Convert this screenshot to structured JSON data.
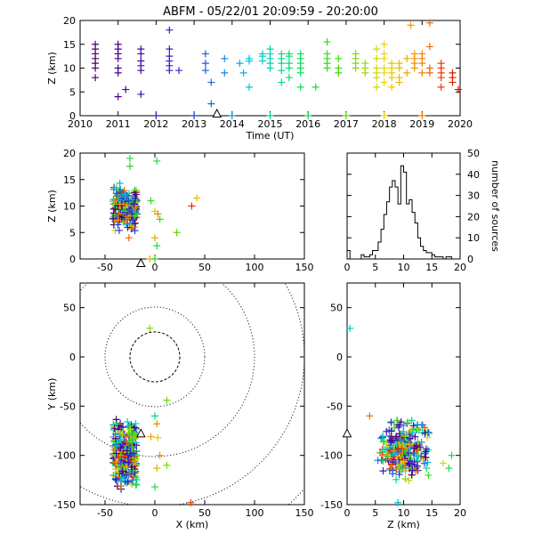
{
  "title": "ABFM - 05/22/01 20:09:59 - 20:20:00",
  "chart_data": [
    {
      "id": "time_height",
      "type": "scatter",
      "xlabel": "Time (UT)",
      "ylabel": "Z (km)",
      "xlim": [
        2010,
        2020
      ],
      "ylim": [
        0,
        20
      ],
      "xticks": [
        2010,
        2011,
        2012,
        2013,
        2014,
        2015,
        2016,
        2017,
        2018,
        2019,
        2020
      ],
      "yticks": [
        0,
        5,
        10,
        15,
        20
      ],
      "marker": "+",
      "color_by": "time",
      "reference_marker": {
        "x": 2013.6,
        "y": 0
      },
      "columns": [
        {
          "x": 2010.4,
          "z": [
            8,
            10,
            11,
            12,
            13,
            14,
            15
          ],
          "ground": true
        },
        {
          "x": 2011.0,
          "z": [
            4,
            9,
            10,
            12,
            13,
            14,
            15
          ],
          "ground": true
        },
        {
          "x": 2011.2,
          "z": [
            5.5
          ]
        },
        {
          "x": 2011.6,
          "z": [
            4.5,
            9.5,
            10.5,
            11.5,
            13,
            14
          ],
          "ground": false
        },
        {
          "x": 2012.0,
          "z": [
            0
          ]
        },
        {
          "x": 2012.35,
          "z": [
            9.5,
            10.5,
            11.5,
            12.5,
            14,
            18
          ]
        },
        {
          "x": 2012.6,
          "z": [
            9.5
          ]
        },
        {
          "x": 2013.0,
          "z": [
            0
          ]
        },
        {
          "x": 2013.3,
          "z": [
            9.5,
            11,
            13
          ]
        },
        {
          "x": 2013.45,
          "z": [
            2.5,
            7
          ]
        },
        {
          "x": 2013.8,
          "z": [
            9,
            12
          ]
        },
        {
          "x": 2014.0,
          "z": [
            0
          ]
        },
        {
          "x": 2014.2,
          "z": [
            11
          ]
        },
        {
          "x": 2014.3,
          "z": [
            9
          ]
        },
        {
          "x": 2014.45,
          "z": [
            6,
            11.5,
            12
          ]
        },
        {
          "x": 2014.8,
          "z": [
            11.5,
            12.5,
            13
          ]
        },
        {
          "x": 2015.0,
          "z": [
            0,
            10,
            11,
            12,
            13,
            14
          ]
        },
        {
          "x": 2015.3,
          "z": [
            7,
            9.5,
            11,
            12,
            13
          ]
        },
        {
          "x": 2015.5,
          "z": [
            8,
            10,
            11,
            12.5,
            13
          ]
        },
        {
          "x": 2015.8,
          "z": [
            6,
            9,
            10,
            11,
            12,
            13
          ]
        },
        {
          "x": 2016.0,
          "z": [
            0
          ]
        },
        {
          "x": 2016.2,
          "z": [
            6
          ]
        },
        {
          "x": 2016.5,
          "z": [
            10,
            11,
            12,
            13,
            15.5
          ]
        },
        {
          "x": 2016.8,
          "z": [
            9,
            10,
            12
          ]
        },
        {
          "x": 2017.0,
          "z": [
            0
          ]
        },
        {
          "x": 2017.25,
          "z": [
            10,
            11,
            12,
            13
          ]
        },
        {
          "x": 2017.5,
          "z": [
            9,
            10,
            11
          ]
        },
        {
          "x": 2017.8,
          "z": [
            6,
            8,
            9,
            10,
            12,
            14
          ]
        },
        {
          "x": 2018.0,
          "z": [
            0,
            7,
            9,
            10,
            12,
            13,
            15
          ]
        },
        {
          "x": 2018.2,
          "z": [
            6,
            8,
            9,
            10,
            11
          ]
        },
        {
          "x": 2018.4,
          "z": [
            7,
            8,
            10,
            11
          ]
        },
        {
          "x": 2018.6,
          "z": [
            9,
            12
          ]
        },
        {
          "x": 2018.7,
          "z": [
            19
          ]
        },
        {
          "x": 2018.8,
          "z": [
            10,
            11,
            12,
            13
          ]
        },
        {
          "x": 2019.0,
          "z": [
            0,
            9,
            11,
            12,
            13
          ]
        },
        {
          "x": 2019.2,
          "z": [
            9,
            10,
            14.5,
            19.5
          ]
        },
        {
          "x": 2019.5,
          "z": [
            6,
            8,
            9,
            10,
            11
          ]
        },
        {
          "x": 2019.8,
          "z": [
            7,
            8,
            9
          ]
        },
        {
          "x": 2019.95,
          "z": [
            5.5
          ]
        }
      ]
    },
    {
      "id": "x_z",
      "type": "scatter",
      "xlabel": "",
      "ylabel": "Z (km)",
      "xlim": [
        -75,
        150
      ],
      "ylim": [
        0,
        20
      ],
      "xticks": [
        -50,
        0,
        50,
        100,
        150
      ],
      "yticks": [
        0,
        5,
        10,
        15,
        20
      ],
      "marker": "+",
      "reference_marker": {
        "x": -14,
        "y": 0
      },
      "cluster": {
        "xrange": [
          -42,
          -18
        ],
        "zrange": [
          4,
          15
        ]
      },
      "outliers": [
        {
          "x": -25,
          "z": 19
        },
        {
          "x": 2,
          "z": 18.5
        },
        {
          "x": -25,
          "z": 17.5
        },
        {
          "x": -4,
          "z": 11
        },
        {
          "x": 0,
          "z": 9
        },
        {
          "x": 3,
          "z": 8.5
        },
        {
          "x": 5,
          "z": 7.5
        },
        {
          "x": 0,
          "z": 4
        },
        {
          "x": 2,
          "z": 2.5
        },
        {
          "x": 42,
          "z": 11.5
        },
        {
          "x": 37,
          "z": 10
        },
        {
          "x": -26,
          "z": 4
        },
        {
          "x": -5,
          "z": 0
        },
        {
          "x": 0,
          "z": 0
        },
        {
          "x": 22,
          "z": 5
        }
      ]
    },
    {
      "id": "histogram",
      "type": "bar",
      "ylabel": "number of sources",
      "xlabel": "",
      "xlim": [
        0,
        20
      ],
      "ylim": [
        0,
        50
      ],
      "xticks": [
        0,
        5,
        10,
        15,
        20
      ],
      "yticks": [
        0,
        10,
        20,
        30,
        40,
        50
      ],
      "bin_width": 0.5,
      "bins_start": [
        0,
        0.5,
        1,
        1.5,
        2,
        2.5,
        3,
        3.5,
        4,
        4.5,
        5,
        5.5,
        6,
        6.5,
        7,
        7.5,
        8,
        8.5,
        9,
        9.5,
        10,
        10.5,
        11,
        11.5,
        12,
        12.5,
        13,
        13.5,
        14,
        14.5,
        15,
        15.5,
        16,
        16.5,
        17,
        17.5,
        18,
        18.5,
        19,
        19.5
      ],
      "values": [
        4,
        0,
        0,
        0,
        0,
        2,
        1,
        1,
        2,
        4,
        4,
        8,
        14,
        21,
        27,
        34,
        37,
        34,
        26,
        44,
        41,
        26,
        28,
        22,
        17,
        10,
        6,
        4,
        3,
        3,
        2,
        1,
        1,
        1,
        0,
        1,
        1,
        0,
        0,
        0
      ]
    },
    {
      "id": "x_y_plan",
      "type": "scatter",
      "xlabel": "X (km)",
      "ylabel": "Y (km)",
      "xlim": [
        -75,
        150
      ],
      "ylim": [
        -150,
        75
      ],
      "xticks": [
        -50,
        0,
        50,
        100,
        150
      ],
      "yticks": [
        -150,
        -100,
        -50,
        0,
        50
      ],
      "marker": "+",
      "range_rings_km": [
        25,
        50,
        100,
        150,
        200
      ],
      "ring_center": [
        0,
        0
      ],
      "reference_marker": {
        "x": -14,
        "y": -78
      },
      "cluster": {
        "xrange": [
          -42,
          -18
        ],
        "yrange": [
          -135,
          -62
        ]
      },
      "outliers": [
        {
          "x": -5,
          "y": 29
        },
        {
          "x": 12,
          "y": -44
        },
        {
          "x": 0,
          "y": -60
        },
        {
          "x": 2,
          "y": -68
        },
        {
          "x": -4,
          "y": -81
        },
        {
          "x": 3,
          "y": -82
        },
        {
          "x": 5,
          "y": -100
        },
        {
          "x": 2,
          "y": -113
        },
        {
          "x": 0,
          "y": -132
        },
        {
          "x": 12,
          "y": -110
        },
        {
          "x": 36,
          "y": -148
        }
      ]
    },
    {
      "id": "z_y",
      "type": "scatter",
      "xlabel": "Z (km)",
      "ylabel": "",
      "xlim": [
        0,
        20
      ],
      "ylim": [
        -150,
        75
      ],
      "xticks": [
        0,
        5,
        10,
        15,
        20
      ],
      "yticks": [
        -150,
        -100,
        -50,
        0,
        50
      ],
      "marker": "+",
      "reference_marker": {
        "x": 0,
        "y": -78
      },
      "cluster": {
        "xrange": [
          5,
          15
        ],
        "yrange": [
          -128,
          -62
        ]
      },
      "outliers": [
        {
          "x": 0.5,
          "y": 29
        },
        {
          "x": 18.5,
          "y": -100
        },
        {
          "x": 18,
          "y": -113
        },
        {
          "x": 17,
          "y": -108
        },
        {
          "x": 9,
          "y": -148
        },
        {
          "x": 4,
          "y": -60
        }
      ]
    }
  ]
}
